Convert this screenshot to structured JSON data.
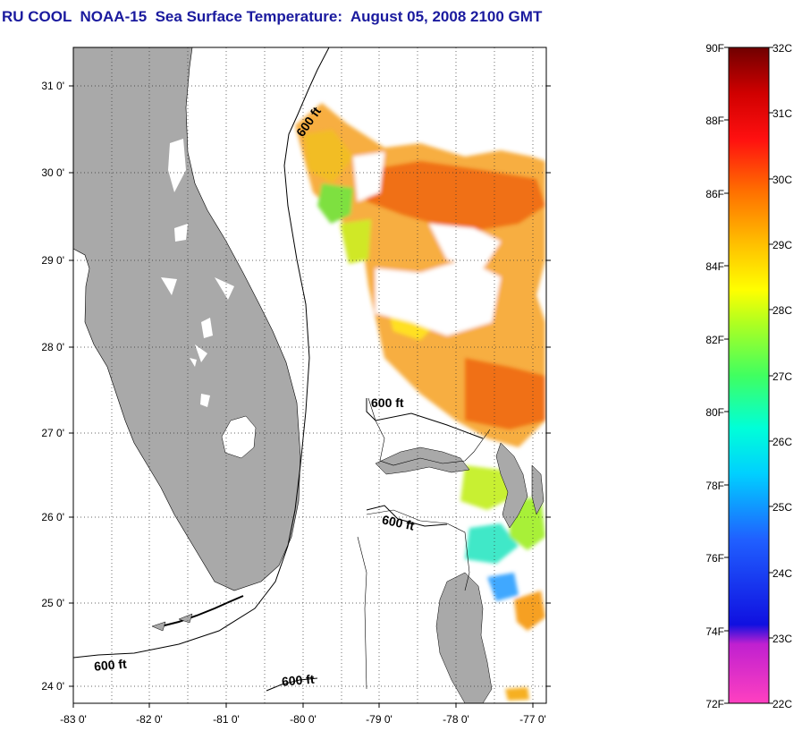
{
  "title": "RU COOL  NOAA-15  Sea Surface Temperature:  August 05, 2008 2100 GMT",
  "map": {
    "lat_labels": [
      "31 0'",
      "30 0'",
      "29 0'",
      "28 0'",
      "27 0'",
      "26 0'",
      "25 0'",
      "24 0'"
    ],
    "lon_labels": [
      "-83 0'",
      "-82 0'",
      "-81 0'",
      "-80 0'",
      "-79 0'",
      "-78 0'",
      "-77 0'"
    ],
    "contour_labels": [
      "600 ft",
      "600 ft",
      "600 ft",
      "600 ft",
      "600 ft"
    ],
    "colors": {
      "land": "#a9a9a9",
      "contour": "#000000",
      "grid": "#000000"
    }
  },
  "colorbar": {
    "fahrenheit_labels": [
      "90F",
      "88F",
      "86F",
      "84F",
      "82F",
      "80F",
      "78F",
      "76F",
      "74F",
      "72F"
    ],
    "celsius_labels": [
      "32C",
      "31C",
      "30C",
      "29C",
      "28C",
      "27C",
      "26C",
      "25C",
      "24C",
      "23C",
      "22C"
    ]
  }
}
